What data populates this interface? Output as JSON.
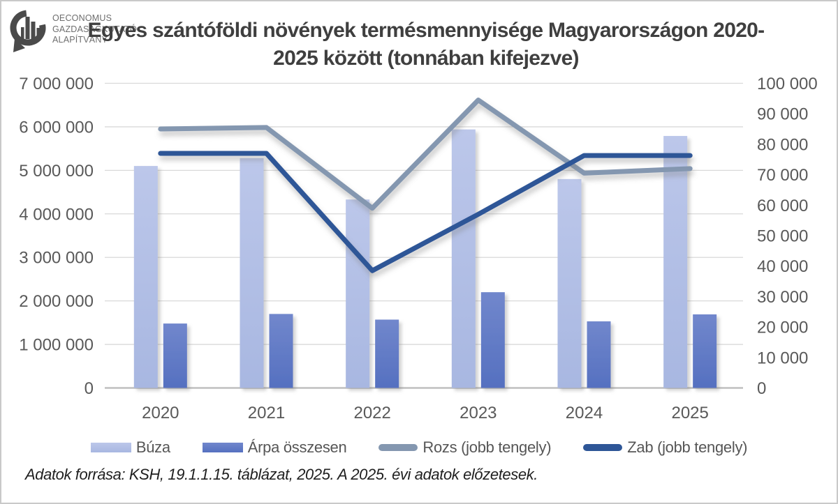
{
  "logo": {
    "line1": "OECONOMUS",
    "line2": "GAZDASÁGKUTATÓ",
    "line3": "ALAPÍTVÁNY"
  },
  "title": {
    "line1": "Egyes szántóföldi növények termésmennyisége Magyarországon 2020-",
    "line2": "2025 között (tonnában kifejezve)"
  },
  "source_note": "Adatok forrása: KSH, 19.1.1.15. táblázat, 2025. A 2025. évi adatok előzetesek.",
  "colors": {
    "title_text": "#3f3f3f",
    "axis_text": "#595959",
    "gridline": "#d9d9d9",
    "axis_line": "#bfbfbf",
    "buza_top": "#bcc7ea",
    "buza_bottom": "#a8b7e1",
    "arpa_top": "#7187cc",
    "arpa_bottom": "#5570c0",
    "rozs_line": "#8497b0",
    "zab_line": "#2e5697",
    "logo_dark": "#4a4a4a",
    "logo_text": "#6e6e6e"
  },
  "chart_data": {
    "type": "bar",
    "subtype": "combo bar + line, dual axis",
    "title": "Egyes szántóföldi növények termésmennyisége Magyarországon 2020-2025 között (tonnában kifejezve)",
    "categories": [
      "2020",
      "2021",
      "2022",
      "2023",
      "2024",
      "2025"
    ],
    "series": [
      {
        "name": "Búza",
        "type": "bar",
        "axis": "left",
        "color_top": "#bcc7ea",
        "color_bottom": "#a8b7e1",
        "values": [
          5100000,
          5280000,
          4330000,
          5940000,
          4800000,
          5790000
        ]
      },
      {
        "name": "Árpa összesen",
        "type": "bar",
        "axis": "left",
        "color_top": "#7187cc",
        "color_bottom": "#5570c0",
        "values": [
          1480000,
          1700000,
          1570000,
          2200000,
          1530000,
          1690000
        ]
      },
      {
        "name": "Rozs (jobb tengely)",
        "type": "line",
        "axis": "right",
        "color": "#8497b0",
        "values": [
          85000,
          85500,
          59000,
          94500,
          70500,
          72000
        ]
      },
      {
        "name": "Zab (jobb tengely)",
        "type": "line",
        "axis": "right",
        "color": "#2e5697",
        "values": [
          77000,
          77000,
          38500,
          57000,
          76300,
          76300
        ]
      }
    ],
    "left_axis": {
      "min": 0,
      "max": 7000000,
      "step": 1000000,
      "tick_labels": [
        "7 000 000",
        "6 000 000",
        "5 000 000",
        "4 000 000",
        "3 000 000",
        "2 000 000",
        "1 000 000",
        "0"
      ]
    },
    "right_axis": {
      "min": 0,
      "max": 100000,
      "step": 10000,
      "tick_labels": [
        "100 000",
        "90 000",
        "80 000",
        "70 000",
        "60 000",
        "50 000",
        "40 000",
        "30 000",
        "20 000",
        "10 000",
        "0"
      ]
    },
    "grid": "horizontal gridlines at left-axis major steps",
    "legend_position": "bottom",
    "xlabel": "",
    "ylabel_left": "",
    "ylabel_right": ""
  }
}
